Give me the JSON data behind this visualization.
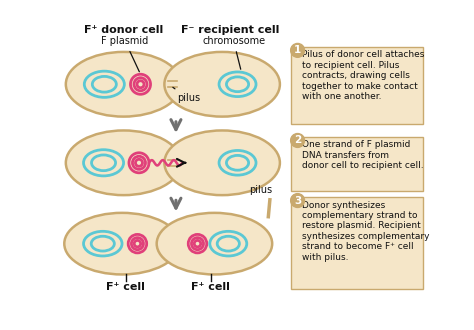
{
  "bg_color": "#ffffff",
  "cell_fill": "#f5e6c8",
  "cell_edge": "#c9a96e",
  "chromosome_color": "#5bc8d4",
  "plasmid_color": "#e0407a",
  "arrow_color": "#707070",
  "text_color": "#111111",
  "label_box_color": "#f5e6c8",
  "label_box_edge": "#c9a96e",
  "num_circle_face": "#c9a96e",
  "num_circle_text": "#ffffff",
  "step1_text": "Pilus of donor cell attaches\nto recipient cell. Pilus\ncontracts, drawing cells\ntogether to make contact\nwith one another.",
  "step2_text": "One strand of F plasmid\nDNA transfers from\ndonor cell to recipient cell.",
  "step3_text": "Donor synthesizes\ncomplementary strand to\nrestore plasmid. Recipient\nsynthesizes complementary\nstrand to become F⁺ cell\nwith pilus.",
  "label_fplus_donor": "F⁺ donor cell",
  "label_fminus_recipient": "F⁻ recipient cell",
  "label_fplasmid": "F plasmid",
  "label_pilus": "pilus",
  "label_chromosome": "chromosome",
  "label_fplus_cell": "F⁺ cell",
  "label_pilus_bottom": "pilus",
  "dna_transfer_color": "#e0407a",
  "black_arrow_color": "#111111"
}
